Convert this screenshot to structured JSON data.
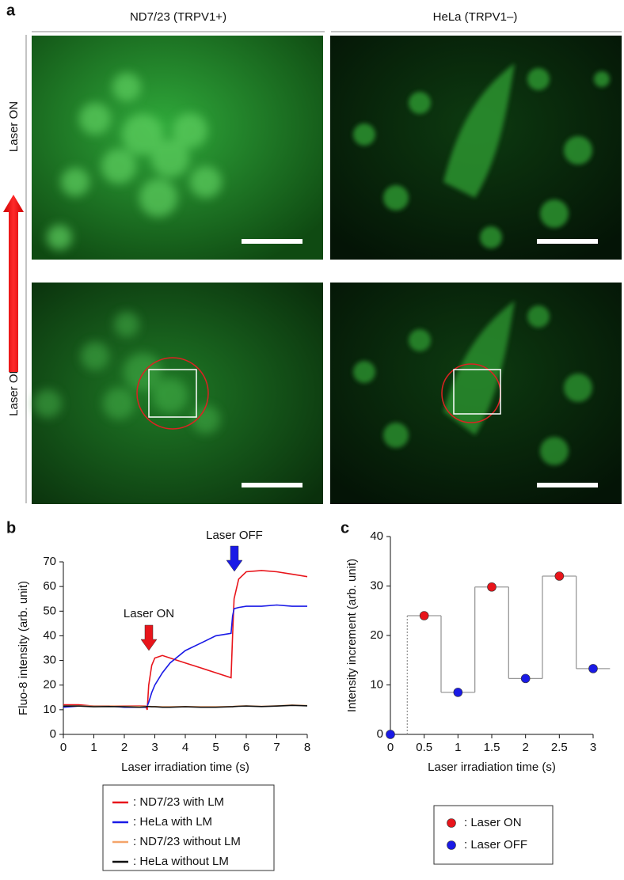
{
  "panel_a": {
    "label": "a",
    "columns": [
      "ND7/23 (TRPV1+)",
      "HeLa (TRPV1–)"
    ],
    "rows": [
      "Laser ON",
      "Laser OFF"
    ]
  },
  "chart_data": [
    {
      "type": "line",
      "panel_label": "b",
      "x_label": "Laser irradiation time (s)",
      "y_label": "Fluo-8 intensity (arb. unit)",
      "annotations": [
        "Laser ON",
        "Laser OFF"
      ],
      "x": [
        0,
        0.5,
        1,
        1.5,
        2,
        2.5,
        2.7,
        2.75,
        2.8,
        2.9,
        3,
        3.25,
        3.5,
        4,
        4.5,
        5,
        5.5,
        5.55,
        5.6,
        5.75,
        6,
        6.5,
        7,
        7.5,
        8
      ],
      "series": [
        {
          "name": ": ND7/23 with LM",
          "color": "#e8151b",
          "values": [
            12,
            12,
            11.5,
            11.5,
            11.5,
            11.5,
            11.5,
            10,
            20,
            28,
            31,
            32,
            31,
            29,
            27,
            25,
            23,
            40,
            55,
            63,
            66,
            66.5,
            66,
            65,
            64
          ]
        },
        {
          "name": ": HeLa with LM",
          "color": "#1a1ae6",
          "values": [
            11,
            11.5,
            11.5,
            11.5,
            11,
            11,
            11,
            11.5,
            13,
            17,
            20,
            25,
            29,
            34,
            37,
            40,
            41,
            48,
            51,
            51.5,
            52,
            52,
            52.5,
            52,
            52
          ]
        },
        {
          "name": ": ND7/23 without LM",
          "color": "#f4a46a",
          "values": [
            11.6,
            11.6,
            11.5,
            11.5,
            11.4,
            11.3,
            11.4,
            11.4,
            11.4,
            11.3,
            11.3,
            11.2,
            11.2,
            11.3,
            11.2,
            11.2,
            11.3,
            11.3,
            11.4,
            11.5,
            11.6,
            11.4,
            11.6,
            11.9,
            11.7
          ]
        },
        {
          "name": ": HeLa without LM",
          "color": "#111111",
          "values": [
            11.5,
            11.5,
            11.2,
            11.3,
            11.2,
            11,
            11.2,
            11.3,
            11.3,
            11.2,
            11.2,
            11,
            11,
            11.2,
            11,
            11,
            11.2,
            11.2,
            11.3,
            11.4,
            11.5,
            11.3,
            11.5,
            11.8,
            11.6
          ]
        }
      ],
      "xlim": [
        0,
        8
      ],
      "xticks": [
        0,
        1,
        2,
        3,
        4,
        5,
        6,
        7,
        8
      ],
      "ylim": [
        0,
        70
      ],
      "yticks": [
        0,
        10,
        20,
        30,
        40,
        50,
        60,
        70
      ]
    },
    {
      "type": "scatter",
      "panel_label": "c",
      "x_label": "Laser irradiation time (s)",
      "y_label": "Intensity increment (arb. unit)",
      "series": [
        {
          "name": ": Laser ON",
          "color": "#e8151b",
          "x": [
            0.5,
            1.5,
            2.5
          ],
          "values": [
            24,
            29.8,
            32
          ]
        },
        {
          "name": ": Laser OFF",
          "color": "#1a1ae6",
          "x": [
            0,
            1,
            2,
            3
          ],
          "values": [
            0,
            8.5,
            11.3,
            13.3
          ]
        }
      ],
      "step_color": "#999999",
      "xlim": [
        0,
        3
      ],
      "xticks": [
        0,
        0.5,
        1,
        1.5,
        2,
        2.5,
        3
      ],
      "ylim": [
        0,
        40
      ],
      "yticks": [
        0,
        10,
        20,
        30,
        40
      ]
    }
  ]
}
